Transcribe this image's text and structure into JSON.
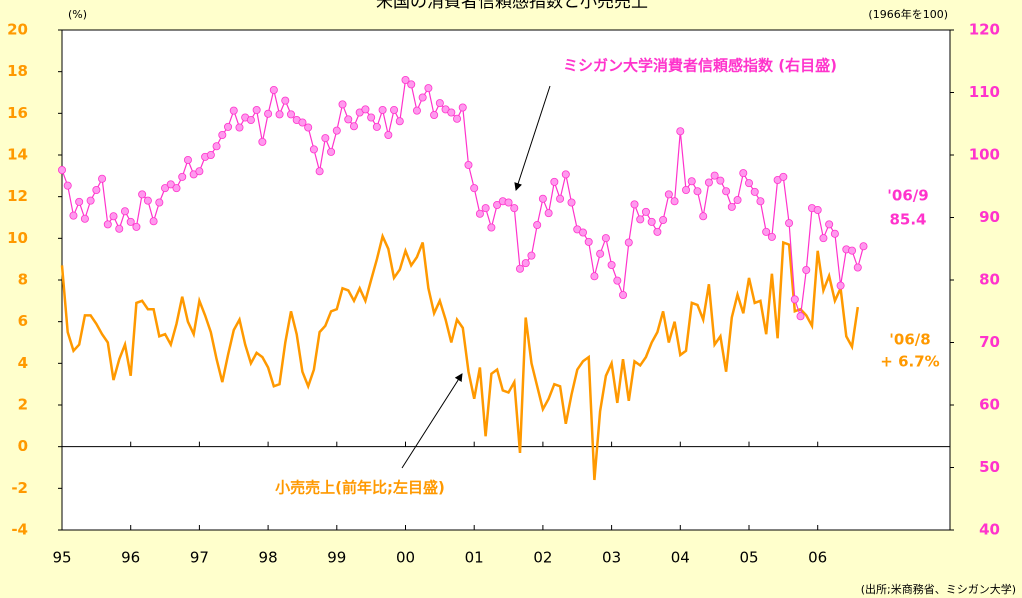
{
  "chart_data": {
    "type": "line",
    "title": "米国の消費者信頼感指数と小売売上",
    "y_unit": "(%)",
    "y2_unit": "(1966年を100)",
    "source": "(出所;米商務省、ミシガン大学)",
    "annotations": [
      {
        "text": "ミシガン大学消費者信頼感指数 (右目盛)",
        "color": "#ff33cc"
      },
      {
        "text": "小売売上(前年比;左目盛)",
        "color": "#ff9900"
      },
      {
        "text": "'06/9",
        "color": "#ff33cc"
      },
      {
        "text": "85.4",
        "color": "#ff33cc"
      },
      {
        "text": "'06/8",
        "color": "#ff9900"
      },
      {
        "text": "+ 6.7%",
        "color": "#ff9900"
      }
    ],
    "categories": [
      "95",
      null,
      null,
      null,
      null,
      null,
      null,
      null,
      null,
      null,
      null,
      null,
      "96",
      null,
      null,
      null,
      null,
      null,
      null,
      null,
      null,
      null,
      null,
      null,
      "97",
      null,
      null,
      null,
      null,
      null,
      null,
      null,
      null,
      null,
      null,
      null,
      "98",
      null,
      null,
      null,
      null,
      null,
      null,
      null,
      null,
      null,
      null,
      null,
      "99",
      null,
      null,
      null,
      null,
      null,
      null,
      null,
      null,
      null,
      null,
      null,
      "00",
      null,
      null,
      null,
      null,
      null,
      null,
      null,
      null,
      null,
      null,
      null,
      "01",
      null,
      null,
      null,
      null,
      null,
      null,
      null,
      null,
      null,
      null,
      null,
      "02",
      null,
      null,
      null,
      null,
      null,
      null,
      null,
      null,
      null,
      null,
      null,
      "03",
      null,
      null,
      null,
      null,
      null,
      null,
      null,
      null,
      null,
      null,
      null,
      "04",
      null,
      null,
      null,
      null,
      null,
      null,
      null,
      null,
      null,
      null,
      null,
      "05",
      null,
      null,
      null,
      null,
      null,
      null,
      null,
      null,
      null,
      null,
      null,
      "06",
      null,
      null,
      null,
      null,
      null,
      null,
      null,
      null
    ],
    "series": [
      {
        "name": "小売売上(前年比;左目盛)",
        "color": "#ff9900",
        "axis": "y",
        "values": [
          8.7,
          5.5,
          4.6,
          4.9,
          6.3,
          6.3,
          5.9,
          5.4,
          5.0,
          3.2,
          4.2,
          4.9,
          3.4,
          6.9,
          7.0,
          6.6,
          6.6,
          5.3,
          5.4,
          4.9,
          5.9,
          7.2,
          6.0,
          5.4,
          7.0,
          6.3,
          5.5,
          4.2,
          3.1,
          4.4,
          5.6,
          6.1,
          4.9,
          4.0,
          4.5,
          4.3,
          3.8,
          2.9,
          3.0,
          5.0,
          6.5,
          5.4,
          3.6,
          2.9,
          3.7,
          5.5,
          5.8,
          6.5,
          6.6,
          7.6,
          7.5,
          7.0,
          7.6,
          7.0,
          8.0,
          9.0,
          10.1,
          9.5,
          8.1,
          8.5,
          9.4,
          8.7,
          9.1,
          9.8,
          7.6,
          6.4,
          7.0,
          6.1,
          5.0,
          6.1,
          5.7,
          3.6,
          2.3,
          3.8,
          0.5,
          3.5,
          3.7,
          2.7,
          2.6,
          3.1,
          -0.3,
          6.2,
          4.0,
          2.9,
          1.8,
          2.3,
          3.0,
          2.9,
          1.1,
          2.5,
          3.7,
          4.1,
          4.3,
          -1.6,
          1.7,
          3.4,
          4.0,
          2.1,
          4.2,
          2.2,
          4.1,
          3.9,
          4.3,
          5.0,
          5.5,
          6.5,
          5.0,
          6.0,
          4.4,
          4.6,
          6.9,
          6.8,
          6.1,
          7.8,
          4.9,
          5.3,
          3.6,
          6.2,
          7.3,
          6.4,
          8.1,
          6.9,
          7.0,
          5.4,
          8.3,
          5.2,
          9.8,
          9.7,
          6.5,
          6.6,
          6.3,
          5.8,
          9.4,
          7.5,
          8.2,
          7.0,
          7.6,
          5.3,
          4.8,
          6.7,
          null
        ]
      },
      {
        "name": "ミシガン大学消費者信頼感指数 (右目盛)",
        "color": "#ff33cc",
        "marker_color": "#ff99ee",
        "axis": "y2",
        "values": [
          97.6,
          95.1,
          90.3,
          92.5,
          89.8,
          92.7,
          94.4,
          96.2,
          88.9,
          90.2,
          88.2,
          91.0,
          89.3,
          88.5,
          93.7,
          92.7,
          89.4,
          92.4,
          94.7,
          95.3,
          94.7,
          96.5,
          99.2,
          96.9,
          97.4,
          99.7,
          100.0,
          101.4,
          103.2,
          104.5,
          107.1,
          104.4,
          106.0,
          105.6,
          107.2,
          102.1,
          106.6,
          110.4,
          106.5,
          108.7,
          106.5,
          105.6,
          105.2,
          104.4,
          100.9,
          97.4,
          102.7,
          100.5,
          103.9,
          108.1,
          105.7,
          104.6,
          106.8,
          107.3,
          106.0,
          104.5,
          107.2,
          103.2,
          107.2,
          105.4,
          112.0,
          111.3,
          107.1,
          109.2,
          110.7,
          106.4,
          108.3,
          107.3,
          106.8,
          105.8,
          107.6,
          98.4,
          94.7,
          90.6,
          91.5,
          88.4,
          92.0,
          92.6,
          92.4,
          91.5,
          81.8,
          82.7,
          83.9,
          88.8,
          93.0,
          90.7,
          95.7,
          93.0,
          96.9,
          92.4,
          88.1,
          87.6,
          86.1,
          80.6,
          84.2,
          86.7,
          82.4,
          79.9,
          77.6,
          86.0,
          92.1,
          89.7,
          90.9,
          89.3,
          87.7,
          89.6,
          93.7,
          92.6,
          103.8,
          94.4,
          95.8,
          94.2,
          90.2,
          95.6,
          96.7,
          95.9,
          94.2,
          91.7,
          92.8,
          97.1,
          95.5,
          94.1,
          92.6,
          87.7,
          86.9,
          96.0,
          96.5,
          89.1,
          76.9,
          74.2,
          81.6,
          91.5,
          91.2,
          86.7,
          88.9,
          87.4,
          79.1,
          84.9,
          84.7,
          82.0,
          85.4
        ]
      }
    ],
    "ylim": [
      -4,
      20
    ],
    "yticks": [
      -4,
      -2,
      0,
      2,
      4,
      6,
      8,
      10,
      12,
      14,
      16,
      18,
      20
    ],
    "y2lim": [
      40,
      120
    ],
    "y2ticks": [
      40,
      50,
      60,
      70,
      80,
      90,
      100,
      110,
      120
    ],
    "y_color": "#ff9900",
    "y2_color": "#ff33cc"
  }
}
